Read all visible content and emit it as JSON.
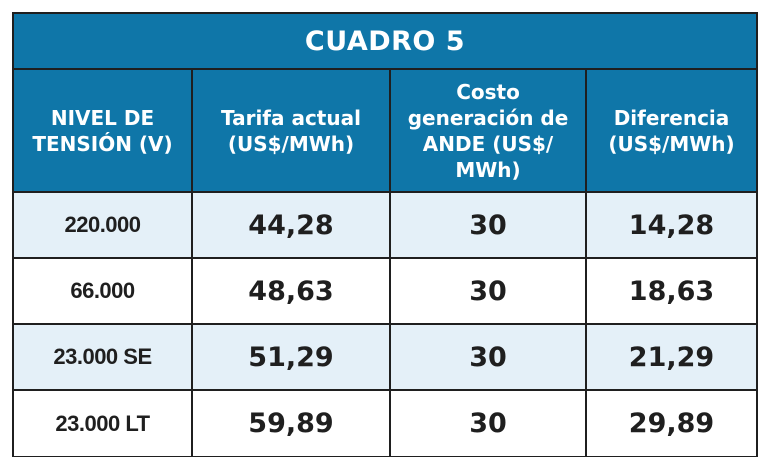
{
  "title": "CUADRO 5",
  "headers": [
    "NIVEL DE TENSIÓN (V)",
    "Tarifa actual (US$/MWh)",
    "Costo generación de ANDE (US$/ MWh)",
    "Diferencia (US$/MWh)"
  ],
  "rows": [
    {
      "level": "220.000",
      "tarifa": "44,28",
      "costo": "30",
      "diferencia": "14,28"
    },
    {
      "level": "66.000",
      "tarifa": "48,63",
      "costo": "30",
      "diferencia": "18,63"
    },
    {
      "level": "23.000 SE",
      "tarifa": "51,29",
      "costo": "30",
      "diferencia": "21,29"
    },
    {
      "level": "23.000 LT",
      "tarifa": "59,89",
      "costo": "30",
      "diferencia": "29,89"
    }
  ],
  "colors": {
    "header_blue": "#0f76a8",
    "row_light_blue": "#e4f0f8",
    "row_white": "#ffffff",
    "border": "#1f1f1f"
  }
}
